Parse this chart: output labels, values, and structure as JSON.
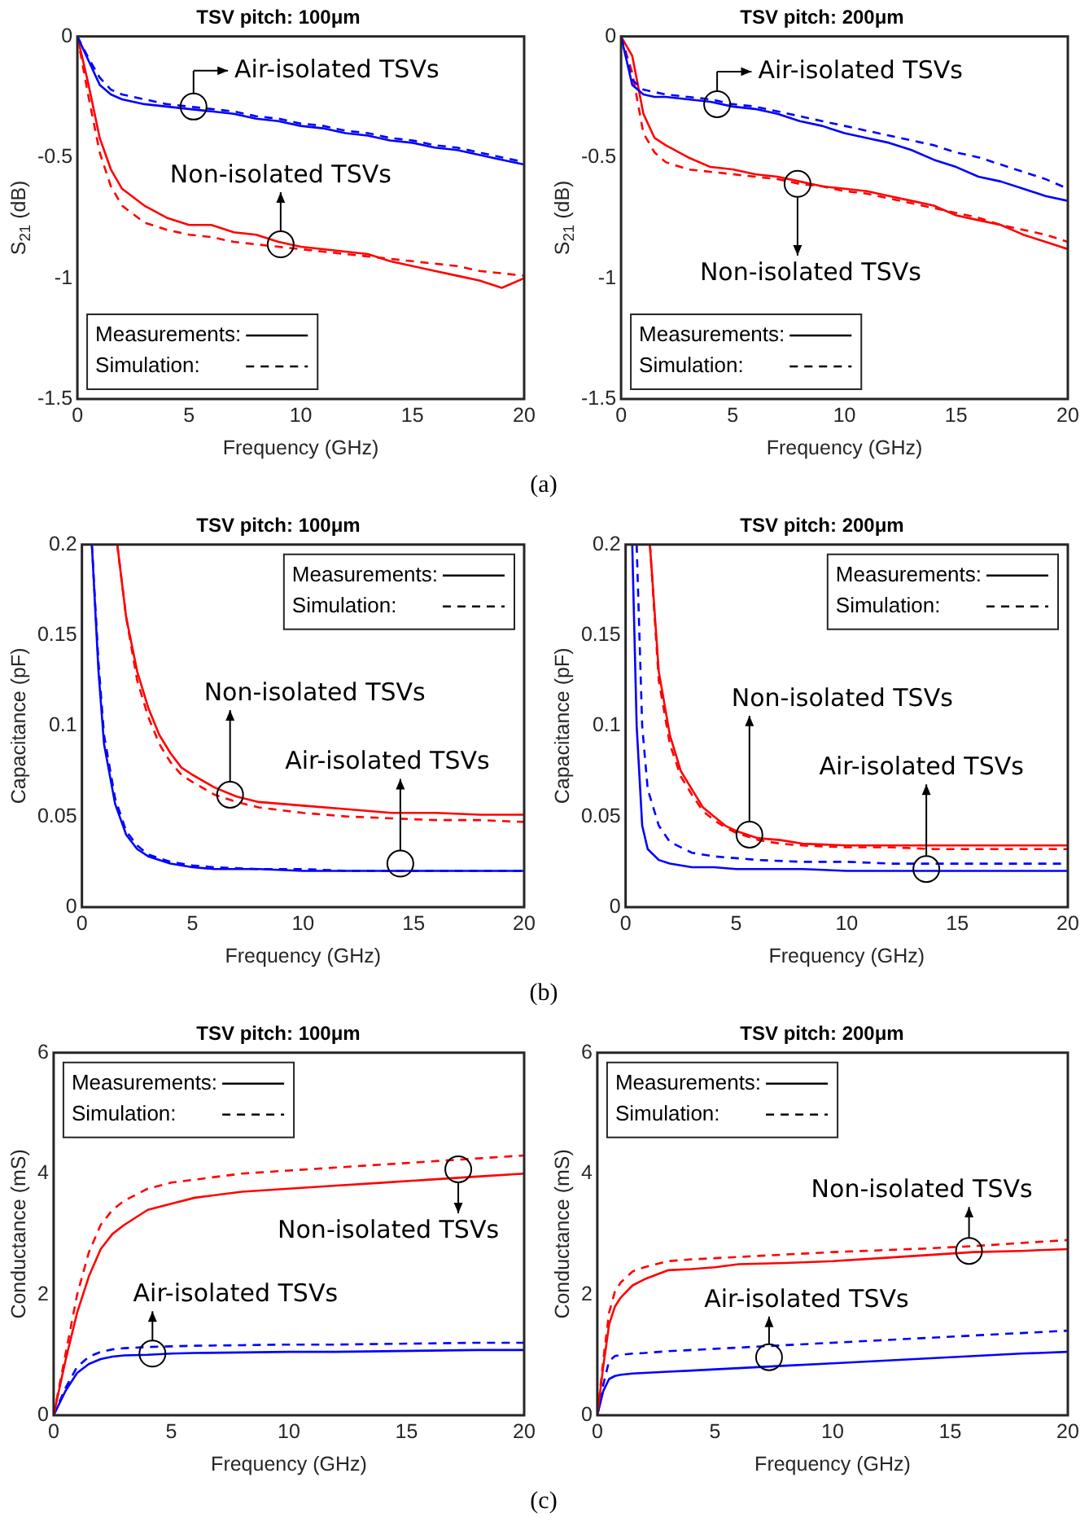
{
  "chart_data": [
    {
      "type": "line",
      "title": "TSV pitch: 100μm",
      "xlabel": "Frequency (GHz)",
      "ylabel": "S$_{21}$ (dB)",
      "xlim": [
        0,
        20
      ],
      "xticks": [
        0,
        5,
        10,
        15,
        20
      ],
      "ylim": [
        -1.5,
        0
      ],
      "yticks": [
        -1.5,
        -1,
        -0.5,
        0
      ],
      "grid": false,
      "x": [
        0,
        0.5,
        1,
        1.5,
        2,
        3,
        4,
        5,
        6,
        7,
        8,
        9,
        10,
        11,
        12,
        13,
        14,
        15,
        16,
        17,
        18,
        19,
        20
      ],
      "series": [
        {
          "color": "#0000ff",
          "line_style": "solid",
          "values": [
            0,
            -0.1,
            -0.2,
            -0.24,
            -0.26,
            -0.28,
            -0.29,
            -0.3,
            -0.31,
            -0.32,
            -0.34,
            -0.35,
            -0.37,
            -0.38,
            -0.4,
            -0.41,
            -0.43,
            -0.44,
            -0.46,
            -0.47,
            -0.49,
            -0.51,
            -0.53
          ]
        },
        {
          "color": "#0000ff",
          "line_style": "dashed",
          "values": [
            0,
            -0.09,
            -0.17,
            -0.22,
            -0.24,
            -0.26,
            -0.28,
            -0.29,
            -0.3,
            -0.31,
            -0.33,
            -0.34,
            -0.36,
            -0.37,
            -0.39,
            -0.4,
            -0.42,
            -0.43,
            -0.45,
            -0.46,
            -0.48,
            -0.5,
            -0.52
          ]
        },
        {
          "color": "#ff0000",
          "line_style": "solid",
          "values": [
            0,
            -0.2,
            -0.42,
            -0.55,
            -0.63,
            -0.7,
            -0.75,
            -0.78,
            -0.78,
            -0.81,
            -0.82,
            -0.85,
            -0.87,
            -0.88,
            -0.89,
            -0.9,
            -0.93,
            -0.95,
            -0.97,
            -0.99,
            -1.01,
            -1.04,
            -1
          ]
        },
        {
          "color": "#ff0000",
          "line_style": "dashed",
          "values": [
            0,
            -0.25,
            -0.48,
            -0.62,
            -0.7,
            -0.77,
            -0.8,
            -0.82,
            -0.83,
            -0.85,
            -0.86,
            -0.87,
            -0.88,
            -0.89,
            -0.9,
            -0.91,
            -0.92,
            -0.93,
            -0.94,
            -0.95,
            -0.97,
            -0.98,
            -0.99
          ]
        }
      ],
      "annotations": [
        "Measurements:",
        "Simulation:",
        "(a)",
        {
          "text": "Air-isolated TSVs",
          "x": 5.2,
          "y": -0.29
        },
        {
          "text": "Non-isolated TSVs",
          "x": 9.1,
          "y": -0.86
        }
      ]
    },
    {
      "type": "line",
      "title": "TSV pitch: 200μm",
      "xlabel": "Frequency (GHz)",
      "ylabel": "S$_{21}$ (dB)",
      "xlim": [
        0,
        20
      ],
      "xticks": [
        0,
        5,
        10,
        15,
        20
      ],
      "ylim": [
        -1.5,
        0
      ],
      "yticks": [
        -1.5,
        -1,
        -0.5,
        0
      ],
      "grid": false,
      "x": [
        0,
        0.5,
        1,
        1.5,
        2,
        3,
        4,
        5,
        6,
        7,
        8,
        9,
        10,
        11,
        12,
        13,
        14,
        15,
        16,
        17,
        18,
        19,
        20
      ],
      "series": [
        {
          "color": "#0000ff",
          "line_style": "solid",
          "values": [
            0,
            -0.2,
            -0.24,
            -0.25,
            -0.25,
            -0.26,
            -0.27,
            -0.29,
            -0.3,
            -0.32,
            -0.35,
            -0.37,
            -0.4,
            -0.42,
            -0.44,
            -0.47,
            -0.51,
            -0.54,
            -0.58,
            -0.6,
            -0.63,
            -0.66,
            -0.68
          ]
        },
        {
          "color": "#0000ff",
          "line_style": "dashed",
          "values": [
            0,
            -0.18,
            -0.22,
            -0.23,
            -0.24,
            -0.25,
            -0.26,
            -0.28,
            -0.29,
            -0.31,
            -0.33,
            -0.35,
            -0.37,
            -0.39,
            -0.41,
            -0.43,
            -0.45,
            -0.48,
            -0.5,
            -0.53,
            -0.56,
            -0.59,
            -0.63
          ]
        },
        {
          "color": "#ff0000",
          "line_style": "solid",
          "values": [
            0,
            -0.08,
            -0.32,
            -0.42,
            -0.45,
            -0.5,
            -0.54,
            -0.55,
            -0.57,
            -0.58,
            -0.6,
            -0.62,
            -0.63,
            -0.64,
            -0.66,
            -0.68,
            -0.7,
            -0.74,
            -0.76,
            -0.78,
            -0.82,
            -0.85,
            -0.88
          ]
        },
        {
          "color": "#ff0000",
          "line_style": "dashed",
          "values": [
            0,
            -0.15,
            -0.4,
            -0.48,
            -0.52,
            -0.55,
            -0.56,
            -0.57,
            -0.58,
            -0.59,
            -0.61,
            -0.62,
            -0.64,
            -0.65,
            -0.67,
            -0.69,
            -0.71,
            -0.73,
            -0.75,
            -0.78,
            -0.8,
            -0.82,
            -0.85
          ]
        }
      ],
      "annotations": [
        "Measurements:",
        "Simulation:",
        {
          "text": "Air-isolated TSVs",
          "x": 4.3,
          "y": -0.28
        },
        {
          "text": "Non-isolated TSVs",
          "x": 7.9,
          "y": -0.61
        }
      ]
    },
    {
      "type": "line",
      "title": "TSV pitch: 100μm",
      "xlabel": "Frequency (GHz)",
      "ylabel": "Capacitance (pF)",
      "xlim": [
        0,
        20
      ],
      "xticks": [
        0,
        5,
        10,
        15,
        20
      ],
      "ylim": [
        0,
        0.2
      ],
      "yticks": [
        0,
        0.05,
        0.1,
        0.15,
        0.2
      ],
      "grid": false,
      "series": [
        {
          "color": "#0000ff",
          "line_style": "solid",
          "x": [
            0.45,
            0.75,
            1,
            1.5,
            2,
            2.5,
            3,
            4,
            5,
            6,
            8,
            10,
            12,
            14,
            16,
            18,
            20
          ],
          "values": [
            0.2,
            0.13,
            0.09,
            0.057,
            0.04,
            0.032,
            0.028,
            0.024,
            0.022,
            0.021,
            0.021,
            0.02,
            0.02,
            0.02,
            0.02,
            0.02,
            0.02
          ]
        },
        {
          "color": "#0000ff",
          "line_style": "dashed",
          "x": [
            0.45,
            0.75,
            1,
            1.5,
            2,
            2.5,
            3,
            4,
            5,
            6,
            8,
            10,
            12,
            14,
            16,
            18,
            20
          ],
          "values": [
            0.2,
            0.135,
            0.095,
            0.06,
            0.042,
            0.034,
            0.029,
            0.025,
            0.023,
            0.022,
            0.021,
            0.021,
            0.02,
            0.02,
            0.02,
            0.02,
            0.02
          ]
        },
        {
          "color": "#ff0000",
          "line_style": "solid",
          "x": [
            1.6,
            2,
            2.5,
            3,
            3.5,
            4,
            4.5,
            5,
            6,
            7,
            8,
            10,
            12,
            14,
            16,
            18,
            20
          ],
          "values": [
            0.2,
            0.16,
            0.13,
            0.11,
            0.095,
            0.085,
            0.077,
            0.073,
            0.066,
            0.061,
            0.058,
            0.056,
            0.054,
            0.052,
            0.052,
            0.051,
            0.051
          ]
        },
        {
          "color": "#ff0000",
          "line_style": "dashed",
          "x": [
            1.6,
            2,
            2.5,
            3,
            3.5,
            4,
            4.5,
            5,
            6,
            7,
            8,
            10,
            12,
            14,
            16,
            18,
            20
          ],
          "values": [
            0.2,
            0.16,
            0.125,
            0.105,
            0.09,
            0.08,
            0.073,
            0.069,
            0.062,
            0.058,
            0.055,
            0.052,
            0.05,
            0.049,
            0.048,
            0.048,
            0.047
          ]
        }
      ],
      "annotations": [
        "Measurements:",
        "Simulation:",
        "(b)",
        {
          "text": "Non-isolated TSVs",
          "x": 6.7,
          "y": 0.062
        },
        {
          "text": "Air-isolated TSVs",
          "x": 14.4,
          "y": 0.024
        }
      ]
    },
    {
      "type": "line",
      "title": "TSV pitch: 200μm",
      "xlabel": "Frequency (GHz)",
      "ylabel": "Capacitance (pF)",
      "xlim": [
        0,
        20
      ],
      "xticks": [
        0,
        5,
        10,
        15,
        20
      ],
      "ylim": [
        0,
        0.2
      ],
      "yticks": [
        0,
        0.05,
        0.1,
        0.15,
        0.2
      ],
      "grid": false,
      "series": [
        {
          "color": "#0000ff",
          "line_style": "solid",
          "x": [
            0.3,
            0.5,
            0.75,
            1,
            1.5,
            2,
            3,
            4,
            5,
            6,
            8,
            10,
            12,
            14,
            16,
            18,
            20
          ],
          "values": [
            0.2,
            0.1,
            0.045,
            0.032,
            0.026,
            0.024,
            0.022,
            0.022,
            0.021,
            0.021,
            0.021,
            0.02,
            0.02,
            0.02,
            0.02,
            0.02,
            0.02
          ]
        },
        {
          "color": "#0000ff",
          "line_style": "dashed",
          "x": [
            0.5,
            0.75,
            1,
            1.5,
            2,
            3,
            4,
            5,
            6,
            8,
            10,
            12,
            14,
            16,
            18,
            20
          ],
          "values": [
            0.2,
            0.1,
            0.065,
            0.045,
            0.036,
            0.03,
            0.028,
            0.027,
            0.026,
            0.025,
            0.025,
            0.024,
            0.024,
            0.024,
            0.024,
            0.024
          ]
        },
        {
          "color": "#ff0000",
          "line_style": "solid",
          "x": [
            1.1,
            1.5,
            2,
            2.5,
            3,
            3.5,
            4,
            4.5,
            5,
            6,
            7,
            8,
            10,
            12,
            14,
            16,
            18,
            20
          ],
          "values": [
            0.2,
            0.13,
            0.095,
            0.075,
            0.065,
            0.055,
            0.05,
            0.045,
            0.042,
            0.038,
            0.037,
            0.035,
            0.034,
            0.034,
            0.034,
            0.034,
            0.034,
            0.034
          ]
        },
        {
          "color": "#ff0000",
          "line_style": "dashed",
          "x": [
            1.1,
            1.5,
            2,
            2.5,
            3,
            3.5,
            4,
            4.5,
            5,
            6,
            7,
            8,
            10,
            12,
            14,
            16,
            18,
            20
          ],
          "values": [
            0.2,
            0.125,
            0.09,
            0.072,
            0.062,
            0.053,
            0.048,
            0.044,
            0.041,
            0.037,
            0.035,
            0.034,
            0.033,
            0.033,
            0.032,
            0.032,
            0.032,
            0.032
          ]
        }
      ],
      "annotations": [
        "Measurements:",
        "Simulation:",
        {
          "text": "Non-isolated TSVs",
          "x": 5.6,
          "y": 0.04
        },
        {
          "text": "Air-isolated TSVs",
          "x": 13.6,
          "y": 0.021
        }
      ]
    },
    {
      "type": "line",
      "title": "TSV pitch: 100μm",
      "xlabel": "Frequency (GHz)",
      "ylabel": "Conductance (mS)",
      "xlim": [
        0,
        20
      ],
      "xticks": [
        0,
        5,
        10,
        15,
        20
      ],
      "ylim": [
        0,
        6
      ],
      "yticks": [
        0,
        2,
        4,
        6
      ],
      "grid": false,
      "x": [
        0,
        0.5,
        1,
        1.5,
        2,
        2.5,
        3,
        4,
        5,
        6,
        8,
        10,
        12,
        14,
        16,
        18,
        20
      ],
      "series": [
        {
          "color": "#ff0000",
          "line_style": "solid",
          "values": [
            0,
            0.9,
            1.7,
            2.3,
            2.75,
            3,
            3.15,
            3.4,
            3.5,
            3.6,
            3.7,
            3.75,
            3.8,
            3.85,
            3.9,
            3.95,
            4
          ]
        },
        {
          "color": "#ff0000",
          "line_style": "dashed",
          "values": [
            0,
            1,
            2,
            2.7,
            3.15,
            3.4,
            3.55,
            3.75,
            3.85,
            3.9,
            4,
            4.05,
            4.1,
            4.15,
            4.2,
            4.25,
            4.3
          ]
        },
        {
          "color": "#0000ff",
          "line_style": "solid",
          "values": [
            0,
            0.4,
            0.7,
            0.85,
            0.93,
            0.97,
            0.99,
            1,
            1.02,
            1.03,
            1.04,
            1.05,
            1.05,
            1.06,
            1.07,
            1.08,
            1.08
          ]
        },
        {
          "color": "#0000ff",
          "line_style": "dashed",
          "values": [
            0,
            0.45,
            0.8,
            0.97,
            1.05,
            1.09,
            1.11,
            1.13,
            1.14,
            1.15,
            1.16,
            1.17,
            1.17,
            1.18,
            1.19,
            1.2,
            1.2
          ]
        }
      ],
      "annotations": [
        "Measurements:",
        "Simulation:",
        "(c)",
        {
          "text": "Air-isolated TSVs",
          "x": 4.2,
          "y": 1.02
        },
        {
          "text": "Non-isolated TSVs",
          "x": 17.2,
          "y": 4.07
        }
      ]
    },
    {
      "type": "line",
      "title": "TSV pitch: 200μm",
      "xlabel": "Frequency (GHz)",
      "ylabel": "Conductance (mS)",
      "xlim": [
        0,
        20
      ],
      "xticks": [
        0,
        5,
        10,
        15,
        20
      ],
      "ylim": [
        0,
        6
      ],
      "yticks": [
        0,
        2,
        4,
        6
      ],
      "grid": false,
      "x": [
        0,
        0.25,
        0.5,
        0.75,
        1,
        1.5,
        2,
        3,
        4,
        5,
        6,
        8,
        10,
        12,
        14,
        16,
        18,
        20
      ],
      "series": [
        {
          "color": "#ff0000",
          "line_style": "solid",
          "values": [
            0,
            0.8,
            1.5,
            1.8,
            1.95,
            2.15,
            2.25,
            2.4,
            2.42,
            2.45,
            2.5,
            2.52,
            2.55,
            2.6,
            2.65,
            2.7,
            2.72,
            2.75
          ]
        },
        {
          "color": "#ff0000",
          "line_style": "dashed",
          "values": [
            0,
            0.9,
            1.7,
            2.05,
            2.2,
            2.38,
            2.45,
            2.55,
            2.58,
            2.6,
            2.62,
            2.66,
            2.7,
            2.73,
            2.76,
            2.8,
            2.85,
            2.9
          ]
        },
        {
          "color": "#0000ff",
          "line_style": "solid",
          "values": [
            0,
            0.4,
            0.6,
            0.65,
            0.67,
            0.69,
            0.7,
            0.72,
            0.74,
            0.76,
            0.78,
            0.82,
            0.86,
            0.9,
            0.94,
            0.98,
            1.02,
            1.05
          ]
        },
        {
          "color": "#0000ff",
          "line_style": "dashed",
          "values": [
            0,
            0.5,
            0.9,
            0.98,
            1,
            1.02,
            1.03,
            1.06,
            1.08,
            1.1,
            1.12,
            1.16,
            1.2,
            1.24,
            1.28,
            1.32,
            1.36,
            1.4
          ]
        }
      ],
      "annotations": [
        "Measurements:",
        "Simulation:",
        {
          "text": "Air-isolated TSVs",
          "x": 7.3,
          "y": 0.96
        },
        {
          "text": "Non-isolated TSVs",
          "x": 15.8,
          "y": 2.72
        }
      ]
    }
  ]
}
